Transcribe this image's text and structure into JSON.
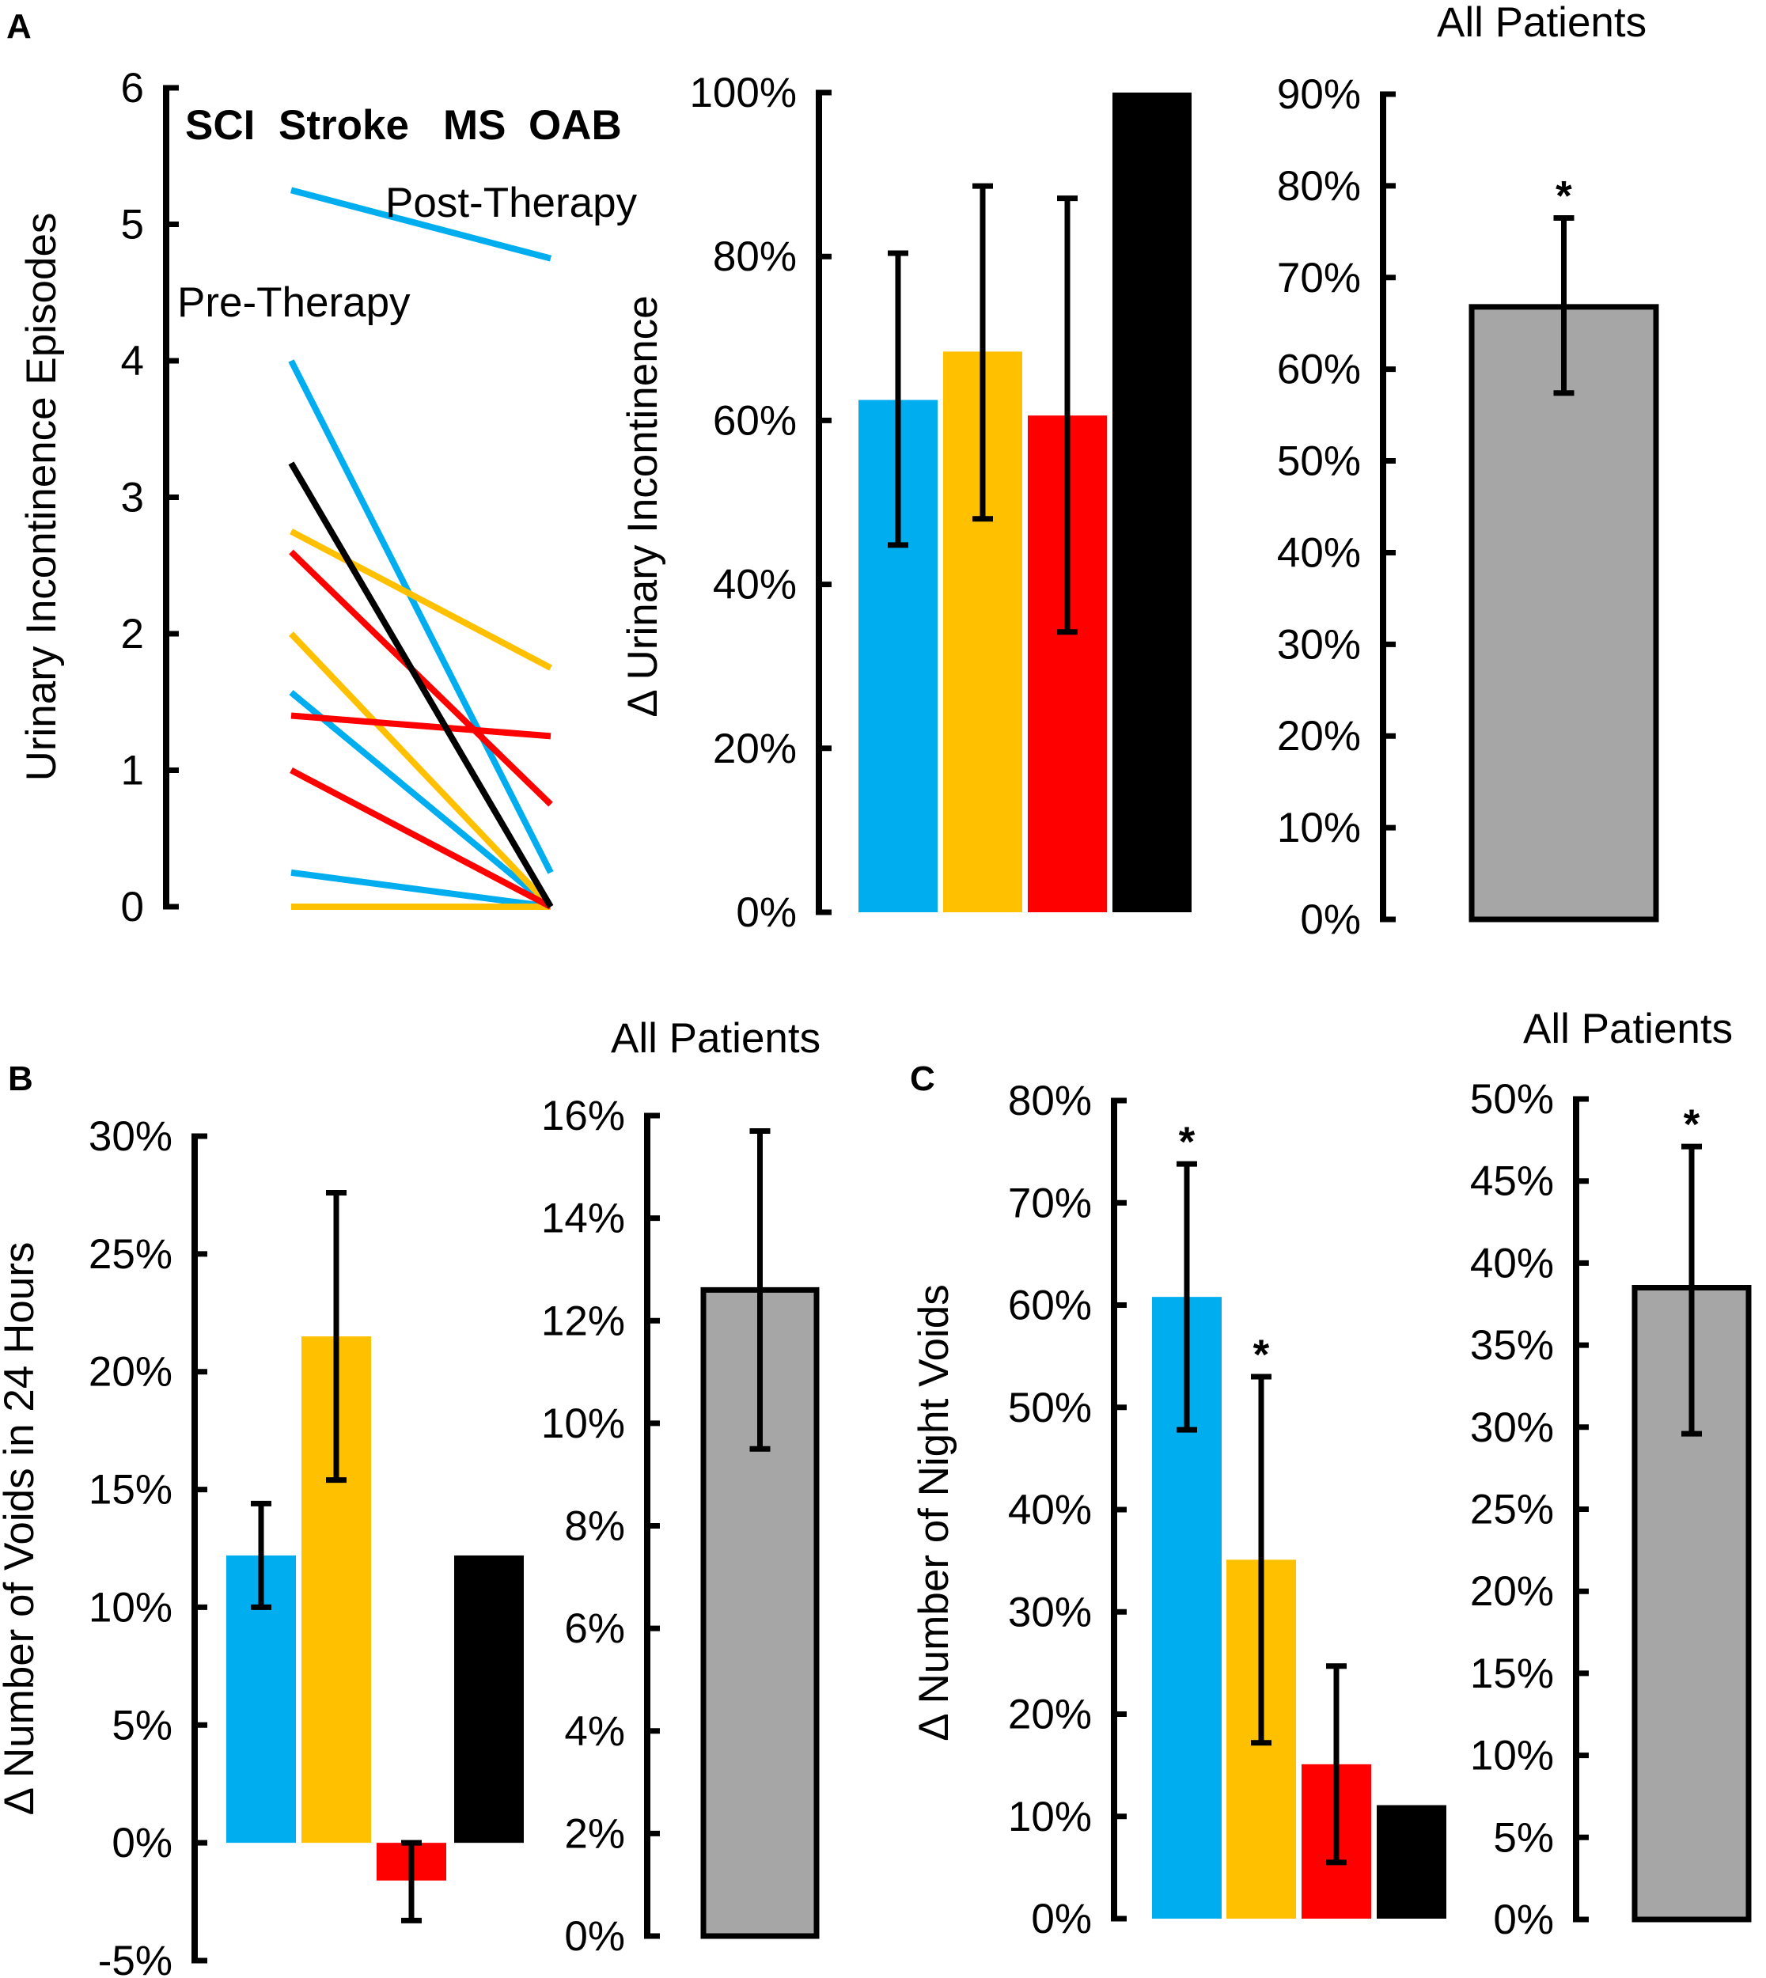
{
  "colors": {
    "sci": "#00AEEF",
    "stroke": "#FFC000",
    "ms": "#FF0000",
    "oab": "#000000",
    "all": "#A6A6A6"
  },
  "chart_data": [
    {
      "id": "A-left",
      "panel": "A",
      "type": "line",
      "ylabel": "Urinary Incontinence Episodes",
      "ylim": [
        0,
        6
      ],
      "ticks": [
        0,
        1,
        2,
        3,
        4,
        5,
        6
      ],
      "x": [
        "Pre-Therapy",
        "Post-Therapy"
      ],
      "legend": [
        {
          "key": "sci",
          "label": "SCI"
        },
        {
          "key": "stroke",
          "label": "Stroke"
        },
        {
          "key": "ms",
          "label": "MS"
        },
        {
          "key": "oab",
          "label": "OAB"
        }
      ],
      "series": [
        {
          "group": "sci",
          "values": [
            5.25,
            4.75
          ]
        },
        {
          "group": "sci",
          "values": [
            4.0,
            0.25
          ]
        },
        {
          "group": "sci",
          "values": [
            1.57,
            0.0
          ]
        },
        {
          "group": "sci",
          "values": [
            0.25,
            0.0
          ]
        },
        {
          "group": "stroke",
          "values": [
            2.75,
            1.75
          ]
        },
        {
          "group": "stroke",
          "values": [
            2.0,
            0.0
          ]
        },
        {
          "group": "stroke",
          "values": [
            0.0,
            0.0
          ]
        },
        {
          "group": "ms",
          "values": [
            2.6,
            0.75
          ]
        },
        {
          "group": "ms",
          "values": [
            1.4,
            1.25
          ]
        },
        {
          "group": "ms",
          "values": [
            1.0,
            0.0
          ]
        },
        {
          "group": "oab",
          "values": [
            3.25,
            0.0
          ]
        }
      ]
    },
    {
      "id": "A-mid",
      "panel": "A",
      "type": "bar",
      "ylabel": "Δ Urinary Incontinence",
      "ylim": [
        0,
        100
      ],
      "ticks": [
        0,
        20,
        40,
        60,
        80,
        100
      ],
      "tick_labels": [
        "0%",
        "20%",
        "40%",
        "60%",
        "80%",
        "100%"
      ],
      "categories": [
        "SCI",
        "Stroke",
        "MS",
        "OAB"
      ],
      "color_keys": [
        "sci",
        "stroke",
        "ms",
        "oab"
      ],
      "values": [
        62.5,
        68.4,
        60.6,
        100
      ],
      "err_low": [
        44.8,
        48.0,
        34.2,
        null
      ],
      "err_high": [
        80.4,
        88.6,
        87.1,
        null
      ],
      "stars": [
        "",
        "",
        "",
        ""
      ]
    },
    {
      "id": "A-right",
      "panel": "A",
      "type": "bar",
      "title": "All Patients",
      "ylim": [
        0,
        90
      ],
      "ticks": [
        0,
        10,
        20,
        30,
        40,
        50,
        60,
        70,
        80,
        90
      ],
      "tick_labels": [
        "0%",
        "10%",
        "20%",
        "30%",
        "40%",
        "50%",
        "60%",
        "70%",
        "80%",
        "90%"
      ],
      "categories": [
        "All Patients"
      ],
      "color_keys": [
        "all"
      ],
      "values": [
        66.8
      ],
      "err_low": [
        57.4
      ],
      "err_high": [
        76.5
      ],
      "stars": [
        "*"
      ]
    },
    {
      "id": "B-left",
      "panel": "B",
      "type": "bar",
      "ylabel": "Δ Number of Voids in 24 Hours",
      "ylim": [
        -5,
        30
      ],
      "ticks": [
        -5,
        0,
        5,
        10,
        15,
        20,
        25,
        30
      ],
      "tick_labels": [
        "-5%",
        "0%",
        "5%",
        "10%",
        "15%",
        "20%",
        "25%",
        "30%"
      ],
      "categories": [
        "SCI",
        "Stroke",
        "MS",
        "OAB"
      ],
      "color_keys": [
        "sci",
        "stroke",
        "ms",
        "oab"
      ],
      "values": [
        12.2,
        21.5,
        -1.6,
        12.2
      ],
      "err_low": [
        10.0,
        15.4,
        -3.3,
        null
      ],
      "err_high": [
        14.4,
        27.6,
        0.0,
        null
      ],
      "stars": [
        "",
        "",
        "",
        ""
      ]
    },
    {
      "id": "B-right",
      "panel": "B",
      "type": "bar",
      "title": "All Patients",
      "ylim": [
        0,
        16
      ],
      "ticks": [
        0,
        2,
        4,
        6,
        8,
        10,
        12,
        14,
        16
      ],
      "tick_labels": [
        "0%",
        "2%",
        "4%",
        "6%",
        "8%",
        "10%",
        "12%",
        "14%",
        "16%"
      ],
      "categories": [
        "All Patients"
      ],
      "color_keys": [
        "all"
      ],
      "values": [
        12.6
      ],
      "err_low": [
        9.5
      ],
      "err_high": [
        15.7
      ],
      "stars": [
        ""
      ]
    },
    {
      "id": "C-left",
      "panel": "C",
      "type": "bar",
      "ylabel": "Δ Number of Night Voids",
      "ylim": [
        0,
        80
      ],
      "ticks": [
        0,
        10,
        20,
        30,
        40,
        50,
        60,
        70,
        80
      ],
      "tick_labels": [
        "0%",
        "10%",
        "20%",
        "30%",
        "40%",
        "50%",
        "60%",
        "70%",
        "80%"
      ],
      "categories": [
        "SCI",
        "Stroke",
        "MS",
        "OAB"
      ],
      "color_keys": [
        "sci",
        "stroke",
        "ms",
        "oab"
      ],
      "values": [
        60.8,
        35.1,
        15.1,
        11.1
      ],
      "err_low": [
        47.8,
        17.2,
        5.5,
        null
      ],
      "err_high": [
        73.8,
        53.0,
        24.7,
        null
      ],
      "stars": [
        "*",
        "*",
        "",
        ""
      ]
    },
    {
      "id": "C-right",
      "panel": "C",
      "type": "bar",
      "title": "All Patients",
      "ylim": [
        0,
        50
      ],
      "ticks": [
        0,
        5,
        10,
        15,
        20,
        25,
        30,
        35,
        40,
        45,
        50
      ],
      "tick_labels": [
        "0%",
        "5%",
        "10%",
        "15%",
        "20%",
        "25%",
        "30%",
        "35%",
        "40%",
        "45%",
        "50%"
      ],
      "categories": [
        "All Patients"
      ],
      "color_keys": [
        "all"
      ],
      "values": [
        38.5
      ],
      "err_low": [
        29.6
      ],
      "err_high": [
        47.1
      ],
      "stars": [
        "*"
      ]
    }
  ],
  "panel_labels": {
    "a": "A",
    "b": "B",
    "c": "C"
  }
}
